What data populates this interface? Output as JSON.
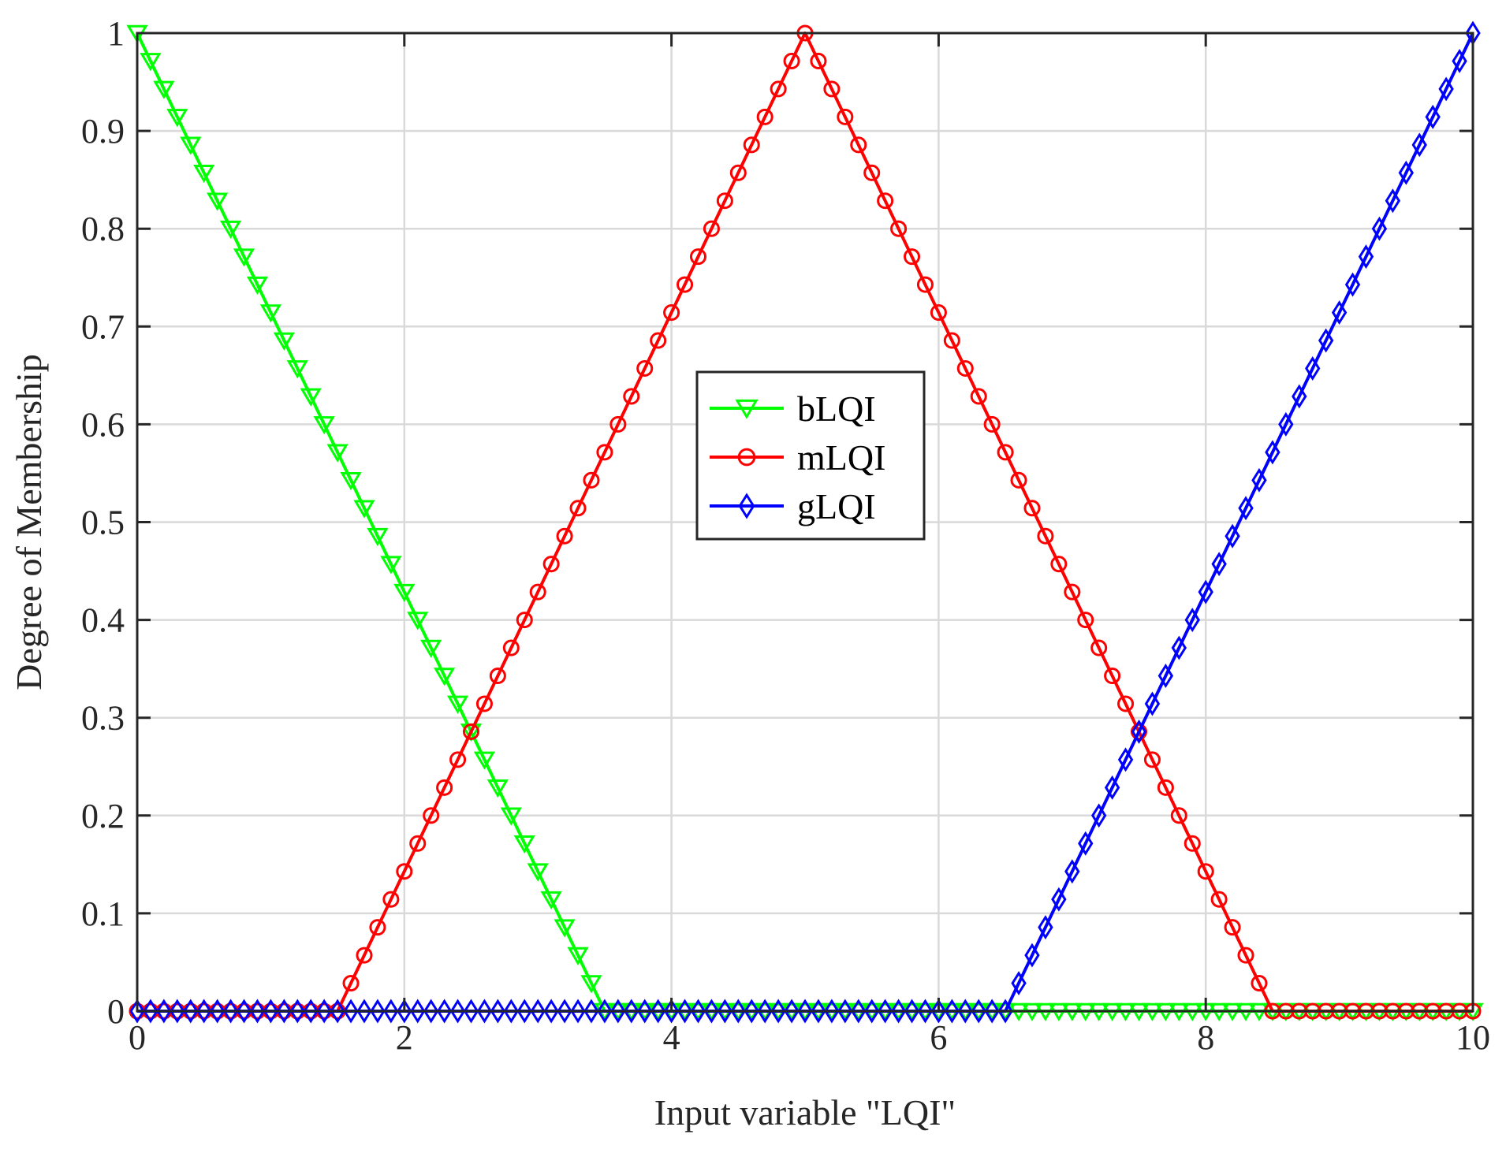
{
  "chart_data": {
    "type": "line",
    "title": "",
    "xlabel": "Input variable \"LQI\"",
    "ylabel": "Degree of Membership",
    "xlim": [
      0,
      10
    ],
    "ylim": [
      0,
      1
    ],
    "xticks": [
      0,
      2,
      4,
      6,
      8,
      10
    ],
    "xtick_labels": [
      "0",
      "2",
      "4",
      "6",
      "8",
      "10"
    ],
    "yticks": [
      0,
      0.1,
      0.2,
      0.3,
      0.4,
      0.5,
      0.6,
      0.7,
      0.8,
      0.9,
      1
    ],
    "ytick_labels": [
      "0",
      "0.1",
      "0.2",
      "0.3",
      "0.4",
      "0.5",
      "0.6",
      "0.7",
      "0.8",
      "0.9",
      "1"
    ],
    "grid": true,
    "legend_position": "center",
    "sample_count": 101,
    "series": [
      {
        "name": "bLQI",
        "color": "#00ff00",
        "marker": "triangle-down",
        "points": [
          [
            0,
            1
          ],
          [
            3.5,
            0
          ],
          [
            10,
            0
          ]
        ]
      },
      {
        "name": "mLQI",
        "color": "#ff0000",
        "marker": "circle",
        "points": [
          [
            0,
            0
          ],
          [
            1.5,
            0
          ],
          [
            5,
            1
          ],
          [
            8.5,
            0
          ],
          [
            10,
            0
          ]
        ]
      },
      {
        "name": "gLQI",
        "color": "#0000ff",
        "marker": "diamond",
        "points": [
          [
            0,
            0
          ],
          [
            6.5,
            0
          ],
          [
            10,
            1
          ]
        ]
      }
    ]
  }
}
